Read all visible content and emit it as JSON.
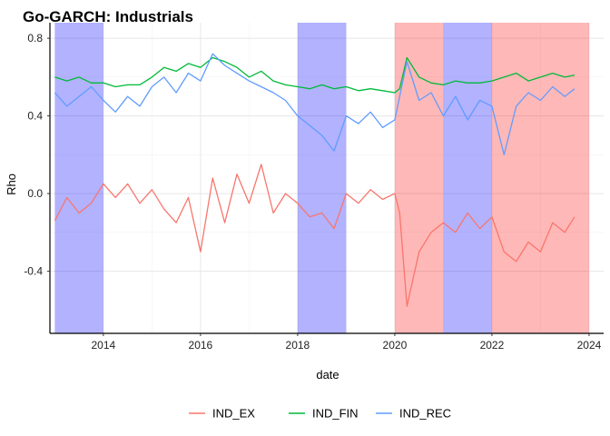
{
  "chart_data": {
    "type": "line",
    "title": "Go-GARCH: Industrials",
    "xlabel": "date",
    "ylabel": "Rho",
    "xlim": [
      2012.9,
      2024.3
    ],
    "ylim": [
      -0.72,
      0.88
    ],
    "x_ticks": [
      2014,
      2016,
      2018,
      2020,
      2022,
      2024
    ],
    "x_tick_labels": [
      "2014",
      "2016",
      "2018",
      "2020",
      "2022",
      "2024"
    ],
    "y_ticks": [
      -0.4,
      0.0,
      0.4,
      0.8
    ],
    "y_tick_labels": [
      "-0.4",
      "0.0",
      "0.4",
      "0.8"
    ],
    "grid": true,
    "legend_position": "bottom",
    "shaded_regions": [
      {
        "start": 2013.0,
        "end": 2014.0,
        "color": "#0000ff",
        "opacity": 0.3
      },
      {
        "start": 2018.0,
        "end": 2019.0,
        "color": "#0000ff",
        "opacity": 0.3
      },
      {
        "start": 2020.0,
        "end": 2021.0,
        "color": "#ff0000",
        "opacity": 0.28
      },
      {
        "start": 2021.0,
        "end": 2022.0,
        "color": "#0000ff",
        "opacity": 0.3
      },
      {
        "start": 2022.0,
        "end": 2024.0,
        "color": "#ff0000",
        "opacity": 0.28
      }
    ],
    "series": [
      {
        "name": "IND_EX",
        "color": "#F8766D",
        "x": [
          2013.0,
          2013.25,
          2013.5,
          2013.75,
          2014.0,
          2014.25,
          2014.5,
          2014.75,
          2015.0,
          2015.25,
          2015.5,
          2015.75,
          2016.0,
          2016.25,
          2016.5,
          2016.75,
          2017.0,
          2017.25,
          2017.5,
          2017.75,
          2018.0,
          2018.25,
          2018.5,
          2018.75,
          2019.0,
          2019.25,
          2019.5,
          2019.75,
          2020.0,
          2020.1,
          2020.25,
          2020.5,
          2020.75,
          2021.0,
          2021.25,
          2021.5,
          2021.75,
          2022.0,
          2022.25,
          2022.5,
          2022.75,
          2023.0,
          2023.25,
          2023.5,
          2023.7
        ],
        "values": [
          -0.14,
          -0.02,
          -0.1,
          -0.05,
          0.05,
          -0.02,
          0.05,
          -0.05,
          0.02,
          -0.08,
          -0.15,
          -0.02,
          -0.3,
          0.08,
          -0.15,
          0.1,
          -0.05,
          0.15,
          -0.1,
          0.0,
          -0.05,
          -0.12,
          -0.1,
          -0.18,
          0.0,
          -0.05,
          0.02,
          -0.03,
          0.0,
          -0.1,
          -0.58,
          -0.3,
          -0.2,
          -0.15,
          -0.2,
          -0.1,
          -0.18,
          -0.12,
          -0.3,
          -0.35,
          -0.25,
          -0.3,
          -0.15,
          -0.2,
          -0.12
        ]
      },
      {
        "name": "IND_FIN",
        "color": "#00BA38",
        "x": [
          2013.0,
          2013.25,
          2013.5,
          2013.75,
          2014.0,
          2014.25,
          2014.5,
          2014.75,
          2015.0,
          2015.25,
          2015.5,
          2015.75,
          2016.0,
          2016.25,
          2016.5,
          2016.75,
          2017.0,
          2017.25,
          2017.5,
          2017.75,
          2018.0,
          2018.25,
          2018.5,
          2018.75,
          2019.0,
          2019.25,
          2019.5,
          2019.75,
          2020.0,
          2020.1,
          2020.25,
          2020.5,
          2020.75,
          2021.0,
          2021.25,
          2021.5,
          2021.75,
          2022.0,
          2022.25,
          2022.5,
          2022.75,
          2023.0,
          2023.25,
          2023.5,
          2023.7
        ],
        "values": [
          0.6,
          0.58,
          0.6,
          0.57,
          0.57,
          0.55,
          0.56,
          0.56,
          0.6,
          0.65,
          0.63,
          0.67,
          0.65,
          0.7,
          0.68,
          0.65,
          0.6,
          0.63,
          0.58,
          0.56,
          0.55,
          0.54,
          0.56,
          0.54,
          0.55,
          0.53,
          0.54,
          0.53,
          0.52,
          0.54,
          0.7,
          0.6,
          0.57,
          0.56,
          0.58,
          0.57,
          0.57,
          0.58,
          0.6,
          0.62,
          0.58,
          0.6,
          0.62,
          0.6,
          0.61
        ]
      },
      {
        "name": "IND_REC",
        "color": "#619CFF",
        "x": [
          2013.0,
          2013.25,
          2013.5,
          2013.75,
          2014.0,
          2014.25,
          2014.5,
          2014.75,
          2015.0,
          2015.25,
          2015.5,
          2015.75,
          2016.0,
          2016.25,
          2016.5,
          2016.75,
          2017.0,
          2017.25,
          2017.5,
          2017.75,
          2018.0,
          2018.25,
          2018.5,
          2018.75,
          2019.0,
          2019.25,
          2019.5,
          2019.75,
          2020.0,
          2020.1,
          2020.25,
          2020.5,
          2020.75,
          2021.0,
          2021.25,
          2021.5,
          2021.75,
          2022.0,
          2022.25,
          2022.5,
          2022.75,
          2023.0,
          2023.25,
          2023.5,
          2023.7
        ],
        "values": [
          0.52,
          0.45,
          0.5,
          0.55,
          0.48,
          0.42,
          0.5,
          0.45,
          0.55,
          0.6,
          0.52,
          0.62,
          0.58,
          0.72,
          0.66,
          0.62,
          0.58,
          0.55,
          0.52,
          0.48,
          0.4,
          0.35,
          0.3,
          0.22,
          0.4,
          0.36,
          0.42,
          0.34,
          0.38,
          0.5,
          0.68,
          0.48,
          0.52,
          0.4,
          0.5,
          0.38,
          0.48,
          0.45,
          0.2,
          0.45,
          0.52,
          0.48,
          0.55,
          0.5,
          0.54
        ]
      }
    ]
  }
}
